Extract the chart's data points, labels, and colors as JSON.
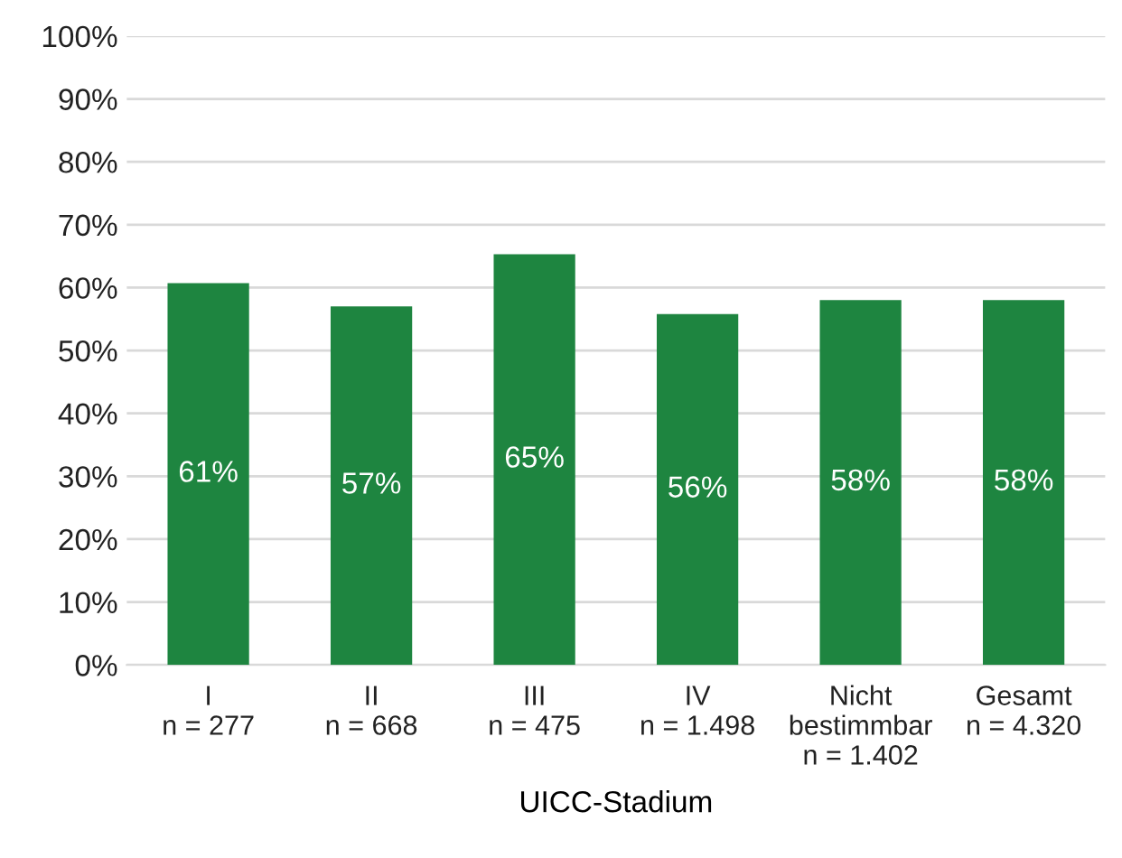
{
  "chart_data": {
    "type": "bar",
    "xlabel": "UICC-Stadium",
    "categories": [
      "I\nn = 277",
      "II\nn = 668",
      "III\nn = 475",
      "IV\nn = 1.498",
      "Nicht\nbestimmbar\nn = 1.402",
      "Gesamt\nn = 4.320"
    ],
    "values": [
      60.7,
      57,
      65.3,
      55.8,
      58,
      58
    ],
    "value_labels": [
      "61%",
      "57%",
      "65%",
      "56%",
      "58%",
      "58%"
    ],
    "color": "#1e8540",
    "ylim": [
      0,
      100
    ],
    "yticks": [
      {
        "value": 0,
        "label": "0%"
      },
      {
        "value": 10,
        "label": "10%"
      },
      {
        "value": 20,
        "label": "20%"
      },
      {
        "value": 30,
        "label": "30%"
      },
      {
        "value": 40,
        "label": "40%"
      },
      {
        "value": 50,
        "label": "50%"
      },
      {
        "value": 60,
        "label": "60%"
      },
      {
        "value": 70,
        "label": "70%"
      },
      {
        "value": 80,
        "label": "80%"
      },
      {
        "value": 90,
        "label": "90%"
      },
      {
        "value": 100,
        "label": "100%"
      }
    ],
    "grid": "y",
    "legend": false
  }
}
